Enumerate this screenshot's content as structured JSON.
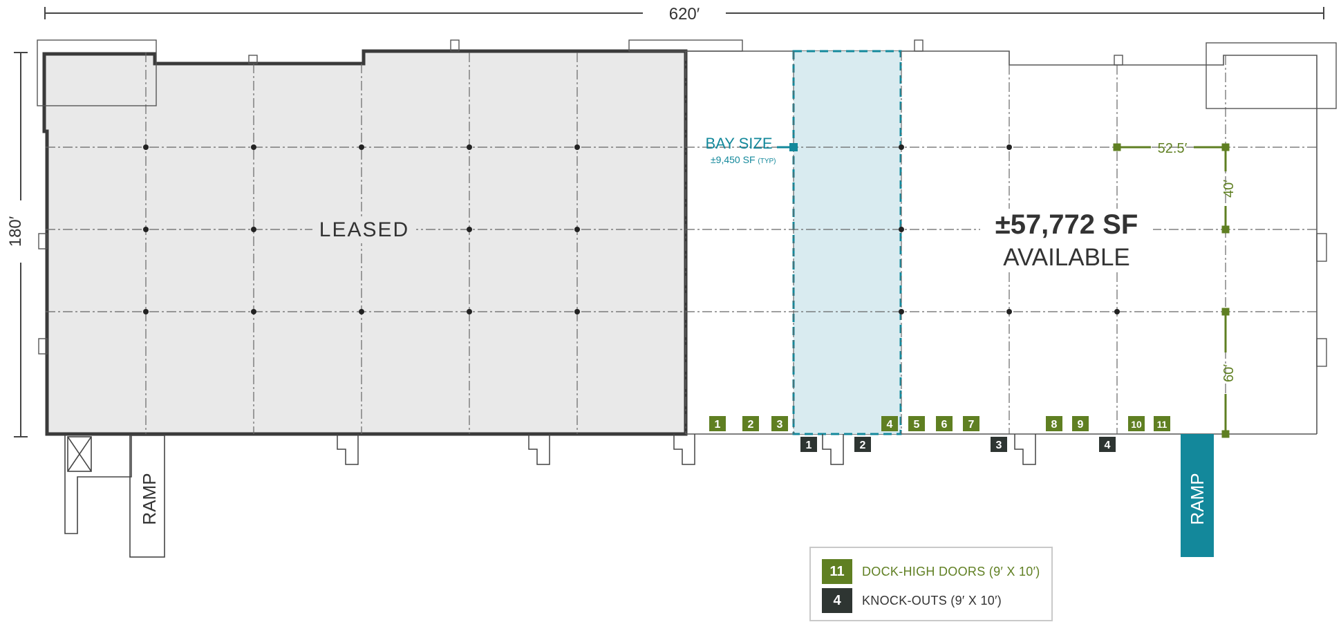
{
  "colors": {
    "wall": "#3a3a3a",
    "leased_fill": "#e9e9e9",
    "bay_fill": "#d9ebf0",
    "bay_accent": "#13889b",
    "dock_green": "#5f7f22",
    "knockout_dark": "#2e3532",
    "ramp_teal": "#13889b",
    "grid": "#555555"
  },
  "dimensions": {
    "width_label": "620′",
    "height_label": "180′",
    "bay_width_label": "52.5′",
    "upper_span_label": "40′",
    "lower_span_label": "60′"
  },
  "leased": {
    "label": "LEASED"
  },
  "available": {
    "area": "±57,772 SF",
    "label": "AVAILABLE"
  },
  "bay_size": {
    "title": "BAY SIZE",
    "area": "±9,450 SF",
    "note": "(TYP)"
  },
  "ramps": [
    "RAMP",
    "RAMP"
  ],
  "dock_doors": [
    "1",
    "2",
    "3",
    "4",
    "5",
    "6",
    "7",
    "8",
    "9",
    "10",
    "11"
  ],
  "knockouts": [
    "1",
    "2",
    "3",
    "4"
  ],
  "legend": {
    "dock": {
      "count": "11",
      "label": "DOCK-HIGH DOORS (9′ X 10′)"
    },
    "knockout": {
      "count": "4",
      "label": "KNOCK-OUTS (9′ X 10′)"
    }
  }
}
